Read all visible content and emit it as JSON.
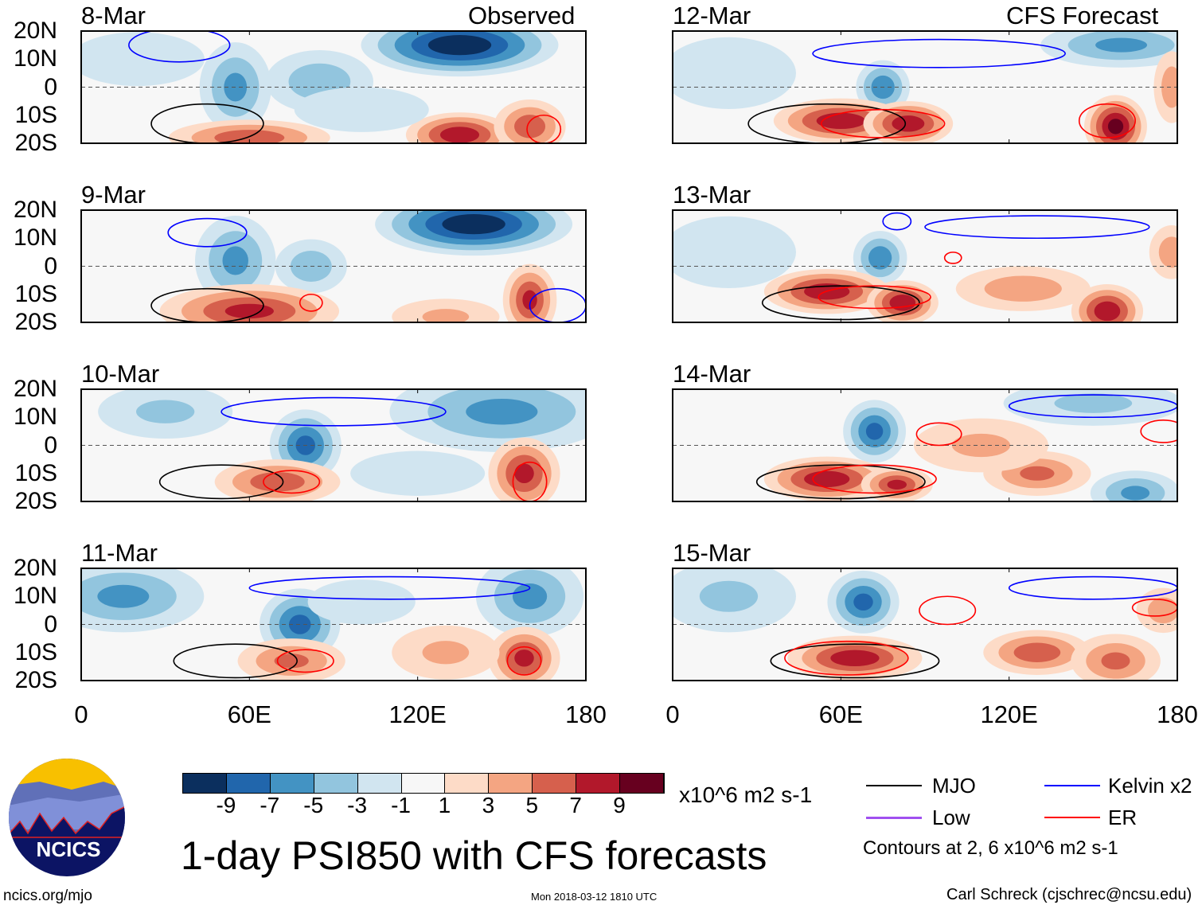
{
  "header": {
    "left_label": "Observed",
    "right_label": "CFS Forecast"
  },
  "axes": {
    "lat_labels": [
      "20N",
      "10N",
      "0",
      "10S",
      "20S"
    ],
    "lon_labels": [
      "0",
      "60E",
      "120E",
      "180"
    ],
    "lat_values": [
      20,
      10,
      0,
      -10,
      -20
    ],
    "lon_values": [
      0,
      60,
      120,
      180
    ]
  },
  "colors": {
    "levels": [
      "#0b2f5e",
      "#2166ac",
      "#4393c3",
      "#92c5de",
      "#d1e5f0",
      "#f7f7f7",
      "#fddbc7",
      "#f4a582",
      "#d6604d",
      "#b2182b",
      "#67001f"
    ],
    "mjo": "#000000",
    "kelvin": "#0000ff",
    "low": "#a050f0",
    "er": "#ff0000"
  },
  "chart_data": {
    "type": "heatmap",
    "variable": "PSI850 anomaly",
    "units": "x10^6 m2 s-1",
    "lon_range": [
      0,
      180
    ],
    "lat_range": [
      -20,
      20
    ],
    "panels": [
      {
        "date": "8-Mar",
        "col": 0,
        "row": 0,
        "anomalies": [
          [
            135,
            15,
            -10,
            22,
            7
          ],
          [
            55,
            0,
            -5,
            8,
            10
          ],
          [
            85,
            2,
            -4,
            12,
            7
          ],
          [
            20,
            10,
            -2,
            15,
            6
          ],
          [
            135,
            -17,
            8,
            12,
            5
          ],
          [
            160,
            -14,
            6,
            8,
            6
          ],
          [
            60,
            -18,
            6,
            18,
            4
          ],
          [
            100,
            -8,
            -2,
            15,
            5
          ]
        ],
        "contours": [
          {
            "type": "mjo",
            "lon": 45,
            "lat": -13,
            "rlon": 20,
            "rlat": 7
          },
          {
            "type": "er",
            "lon": 165,
            "lat": -15,
            "rlon": 6,
            "rlat": 5
          },
          {
            "type": "kelvin",
            "lon": 35,
            "lat": 15,
            "rlon": 18,
            "rlat": 6
          }
        ]
      },
      {
        "date": "9-Mar",
        "col": 0,
        "row": 0,
        "anomalies": [
          [
            140,
            15,
            -10,
            22,
            7
          ],
          [
            55,
            2,
            -5,
            9,
            10
          ],
          [
            82,
            0,
            -4,
            8,
            6
          ],
          [
            160,
            -12,
            7,
            6,
            8
          ],
          [
            60,
            -16,
            7,
            20,
            6
          ],
          [
            130,
            -18,
            3,
            12,
            4
          ]
        ],
        "contours": [
          {
            "type": "mjo",
            "lon": 45,
            "lat": -14,
            "rlon": 20,
            "rlat": 6
          },
          {
            "type": "er",
            "lon": 82,
            "lat": -13,
            "rlon": 4,
            "rlat": 3
          },
          {
            "type": "kelvin",
            "lon": 170,
            "lat": -14,
            "rlon": 10,
            "rlat": 6
          },
          {
            "type": "kelvin",
            "lon": 45,
            "lat": 12,
            "rlon": 14,
            "rlat": 5
          }
        ]
      },
      {
        "date": "10-Mar",
        "col": 0,
        "row": 0,
        "anomalies": [
          [
            80,
            0,
            -7,
            8,
            8
          ],
          [
            150,
            12,
            -5,
            25,
            9
          ],
          [
            30,
            12,
            -3,
            15,
            6
          ],
          [
            70,
            -13,
            6,
            14,
            5
          ],
          [
            158,
            -10,
            7,
            8,
            8
          ],
          [
            120,
            -10,
            -2,
            15,
            5
          ]
        ],
        "contours": [
          {
            "type": "mjo",
            "lon": 50,
            "lat": -13,
            "rlon": 22,
            "rlat": 6
          },
          {
            "type": "er",
            "lon": 75,
            "lat": -13,
            "rlon": 10,
            "rlat": 4
          },
          {
            "type": "er",
            "lon": 160,
            "lat": -13,
            "rlon": 6,
            "rlat": 7
          },
          {
            "type": "kelvin",
            "lon": 90,
            "lat": 12,
            "rlon": 40,
            "rlat": 5
          }
        ]
      },
      {
        "date": "11-Mar",
        "col": 0,
        "row": 0,
        "anomalies": [
          [
            78,
            0,
            -7,
            9,
            8
          ],
          [
            15,
            10,
            -5,
            18,
            8
          ],
          [
            160,
            10,
            -5,
            12,
            9
          ],
          [
            75,
            -13,
            5,
            12,
            5
          ],
          [
            158,
            -12,
            7,
            8,
            7
          ],
          [
            130,
            -10,
            3,
            12,
            6
          ],
          [
            100,
            8,
            -2,
            12,
            5
          ]
        ],
        "contours": [
          {
            "type": "mjo",
            "lon": 55,
            "lat": -13,
            "rlon": 22,
            "rlat": 6
          },
          {
            "type": "er",
            "lon": 80,
            "lat": -13,
            "rlon": 10,
            "rlat": 4
          },
          {
            "type": "er",
            "lon": 158,
            "lat": -13,
            "rlon": 6,
            "rlat": 5
          },
          {
            "type": "kelvin",
            "lon": 110,
            "lat": 13,
            "rlon": 50,
            "rlat": 4
          }
        ]
      },
      {
        "date": "12-Mar",
        "col": 1,
        "row": 0,
        "anomalies": [
          [
            75,
            0,
            -6,
            6,
            6
          ],
          [
            160,
            15,
            -5,
            18,
            5
          ],
          [
            60,
            -12,
            8,
            15,
            5
          ],
          [
            84,
            -13,
            8,
            10,
            5
          ],
          [
            158,
            -14,
            9,
            7,
            7
          ],
          [
            20,
            5,
            -2,
            15,
            8
          ],
          [
            178,
            0,
            4,
            4,
            8
          ]
        ],
        "contours": [
          {
            "type": "mjo",
            "lon": 55,
            "lat": -13,
            "rlon": 28,
            "rlat": 7
          },
          {
            "type": "er",
            "lon": 75,
            "lat": -13,
            "rlon": 22,
            "rlat": 5
          },
          {
            "type": "er",
            "lon": 155,
            "lat": -12,
            "rlon": 10,
            "rlat": 6
          },
          {
            "type": "kelvin",
            "lon": 95,
            "lat": 12,
            "rlon": 45,
            "rlat": 5
          }
        ]
      },
      {
        "date": "13-Mar",
        "col": 1,
        "row": 0,
        "anomalies": [
          [
            74,
            3,
            -6,
            6,
            6
          ],
          [
            55,
            -9,
            8,
            14,
            5
          ],
          [
            82,
            -13,
            8,
            8,
            5
          ],
          [
            155,
            -16,
            8,
            8,
            6
          ],
          [
            125,
            -8,
            4,
            15,
            5
          ],
          [
            20,
            5,
            -2,
            15,
            8
          ],
          [
            178,
            5,
            4,
            5,
            6
          ]
        ],
        "contours": [
          {
            "type": "mjo",
            "lon": 60,
            "lat": -13,
            "rlon": 28,
            "rlat": 6
          },
          {
            "type": "er",
            "lon": 72,
            "lat": -11,
            "rlon": 20,
            "rlat": 4
          },
          {
            "type": "er",
            "lon": 100,
            "lat": 3,
            "rlon": 3,
            "rlat": 2
          },
          {
            "type": "kelvin",
            "lon": 130,
            "lat": 14,
            "rlon": 40,
            "rlat": 4
          },
          {
            "type": "kelvin",
            "lon": 80,
            "lat": 16,
            "rlon": 5,
            "rlat": 3
          }
        ]
      },
      {
        "date": "14-Mar",
        "col": 1,
        "row": 0,
        "anomalies": [
          [
            72,
            5,
            -7,
            7,
            7
          ],
          [
            55,
            -12,
            8,
            14,
            5
          ],
          [
            80,
            -14,
            7,
            8,
            4
          ],
          [
            130,
            -10,
            5,
            12,
            5
          ],
          [
            165,
            -17,
            -5,
            10,
            5
          ],
          [
            150,
            15,
            -3,
            20,
            5
          ],
          [
            110,
            0,
            3,
            15,
            6
          ]
        ],
        "contours": [
          {
            "type": "mjo",
            "lon": 60,
            "lat": -13,
            "rlon": 30,
            "rlat": 6
          },
          {
            "type": "er",
            "lon": 72,
            "lat": -12,
            "rlon": 22,
            "rlat": 5
          },
          {
            "type": "er",
            "lon": 95,
            "lat": 4,
            "rlon": 8,
            "rlat": 4
          },
          {
            "type": "er",
            "lon": 175,
            "lat": 5,
            "rlon": 8,
            "rlat": 4
          },
          {
            "type": "kelvin",
            "lon": 150,
            "lat": 14,
            "rlon": 30,
            "rlat": 4
          }
        ]
      },
      {
        "date": "15-Mar",
        "col": 1,
        "row": 0,
        "anomalies": [
          [
            68,
            8,
            -7,
            8,
            7
          ],
          [
            65,
            -12,
            8,
            15,
            5
          ],
          [
            130,
            -10,
            6,
            12,
            5
          ],
          [
            158,
            -13,
            5,
            10,
            6
          ],
          [
            175,
            5,
            4,
            6,
            5
          ],
          [
            20,
            10,
            -3,
            15,
            8
          ]
        ],
        "contours": [
          {
            "type": "mjo",
            "lon": 65,
            "lat": -13,
            "rlon": 30,
            "rlat": 6
          },
          {
            "type": "er",
            "lon": 62,
            "lat": -12,
            "rlon": 22,
            "rlat": 6
          },
          {
            "type": "er",
            "lon": 98,
            "lat": 5,
            "rlon": 10,
            "rlat": 5
          },
          {
            "type": "er",
            "lon": 172,
            "lat": 6,
            "rlon": 8,
            "rlat": 3
          },
          {
            "type": "kelvin",
            "lon": 150,
            "lat": 13,
            "rlon": 30,
            "rlat": 4
          }
        ]
      }
    ]
  },
  "colorbar": {
    "ticks": [
      "-9",
      "-7",
      "-5",
      "-3",
      "-1",
      "1",
      "3",
      "5",
      "7",
      "9"
    ],
    "units": "x10^6 m2 s-1"
  },
  "legend": {
    "mjo": "MJO",
    "kelvin": "Kelvin x2",
    "low": "Low",
    "er": "ER",
    "note": "Contours at 2, 6 x10^6 m2 s-1"
  },
  "footer": {
    "title": "1-day PSI850 with CFS forecasts",
    "url": "ncics.org/mjo",
    "timestamp": "Mon 2018-03-12 1810 UTC",
    "credit": "Carl Schreck (cjschrec@ncsu.edu)",
    "logo_text": "NCICS"
  }
}
